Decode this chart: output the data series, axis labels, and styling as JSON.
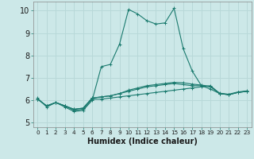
{
  "title": "",
  "xlabel": "Humidex (Indice chaleur)",
  "ylabel": "",
  "xlim": [
    -0.5,
    23.5
  ],
  "ylim": [
    4.8,
    10.4
  ],
  "background_color": "#cce8e8",
  "grid_color": "#b8d8d8",
  "line_color": "#1a7a6e",
  "xticks": [
    0,
    1,
    2,
    3,
    4,
    5,
    6,
    7,
    8,
    9,
    10,
    11,
    12,
    13,
    14,
    15,
    16,
    17,
    18,
    19,
    20,
    21,
    22,
    23
  ],
  "yticks": [
    5,
    6,
    7,
    8,
    9,
    10
  ],
  "series": [
    [
      6.1,
      5.7,
      5.9,
      5.7,
      5.5,
      5.55,
      6.0,
      7.5,
      7.6,
      8.5,
      10.05,
      9.85,
      9.55,
      9.4,
      9.45,
      10.1,
      8.3,
      7.3,
      6.65,
      6.5,
      6.3,
      6.25,
      6.35,
      6.4
    ],
    [
      6.05,
      5.75,
      5.9,
      5.75,
      5.55,
      5.6,
      6.05,
      6.05,
      6.1,
      6.15,
      6.2,
      6.25,
      6.3,
      6.35,
      6.4,
      6.45,
      6.5,
      6.55,
      6.6,
      6.65,
      6.3,
      6.25,
      6.35,
      6.4
    ],
    [
      6.05,
      5.75,
      5.9,
      5.75,
      5.6,
      5.65,
      6.1,
      6.15,
      6.2,
      6.3,
      6.4,
      6.5,
      6.6,
      6.65,
      6.7,
      6.75,
      6.7,
      6.65,
      6.65,
      6.6,
      6.3,
      6.25,
      6.35,
      6.4
    ],
    [
      6.05,
      5.75,
      5.9,
      5.75,
      5.6,
      5.65,
      6.1,
      6.15,
      6.2,
      6.3,
      6.45,
      6.55,
      6.65,
      6.7,
      6.75,
      6.8,
      6.78,
      6.72,
      6.68,
      6.62,
      6.32,
      6.27,
      6.37,
      6.42
    ]
  ],
  "spine_color": "#888888",
  "tick_color": "#1a7a6e",
  "label_color": "#1a1a1a",
  "xlabel_fontsize": 7,
  "xlabel_fontweight": "bold",
  "ytick_fontsize": 7,
  "xtick_fontsize": 5.2
}
